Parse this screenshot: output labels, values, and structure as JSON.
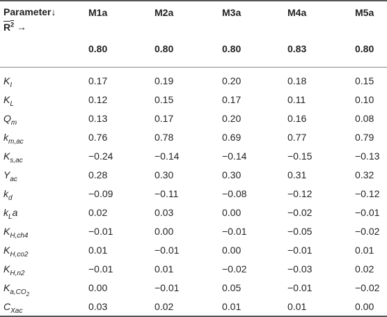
{
  "header": {
    "param_label": "Parameter↓",
    "r2_label": "R",
    "r2_sup": "2",
    "r2_arrow": " →",
    "models": [
      "M1a",
      "M2a",
      "M3a",
      "M4a",
      "M5a"
    ],
    "r2_values": [
      "0.80",
      "0.80",
      "0.80",
      "0.83",
      "0.80"
    ]
  },
  "rows": [
    {
      "p": "K",
      "s": "I",
      "v": [
        "0.17",
        "0.19",
        "0.20",
        "0.18",
        "0.15"
      ]
    },
    {
      "p": "K",
      "s": "L",
      "v": [
        "0.12",
        "0.15",
        "0.17",
        "0.11",
        "0.10"
      ]
    },
    {
      "p": "Q",
      "s": "m",
      "v": [
        "0.13",
        "0.17",
        "0.20",
        "0.16",
        "0.08"
      ]
    },
    {
      "p": "k",
      "s": "m,ac",
      "v": [
        "0.76",
        "0.78",
        "0.69",
        "0.77",
        "0.79"
      ]
    },
    {
      "p": "K",
      "s": "s,ac",
      "v": [
        "−0.24",
        "−0.14",
        "−0.14",
        "−0.15",
        "−0.13"
      ]
    },
    {
      "p": "Y",
      "s": "ac",
      "v": [
        "0.28",
        "0.30",
        "0.30",
        "0.31",
        "0.32"
      ]
    },
    {
      "p": "k",
      "s": "d",
      "v": [
        "−0.09",
        "−0.11",
        "−0.08",
        "−0.12",
        "−0.12"
      ]
    },
    {
      "p": "k",
      "s": "L",
      "tail": "a",
      "v": [
        "0.02",
        "0.03",
        "0.00",
        "−0.02",
        "−0.01"
      ]
    },
    {
      "p": "K",
      "s": "H,ch4",
      "v": [
        "−0.01",
        "0.00",
        "−0.01",
        "−0.05",
        "−0.02"
      ]
    },
    {
      "p": "K",
      "s": "H,co2",
      "v": [
        "0.01",
        "−0.01",
        "0.00",
        "−0.01",
        "0.01"
      ]
    },
    {
      "p": "K",
      "s": "H,n2",
      "v": [
        "−0.01",
        "0.01",
        "−0.02",
        "−0.03",
        "0.02"
      ]
    },
    {
      "p": "K",
      "s": "a,CO",
      "ss": "2",
      "v": [
        "0.00",
        "−0.01",
        "0.05",
        "−0.01",
        "−0.02"
      ]
    },
    {
      "p": "C",
      "s": "Xac",
      "v": [
        "0.03",
        "0.02",
        "0.01",
        "0.01",
        "0.00"
      ]
    }
  ]
}
